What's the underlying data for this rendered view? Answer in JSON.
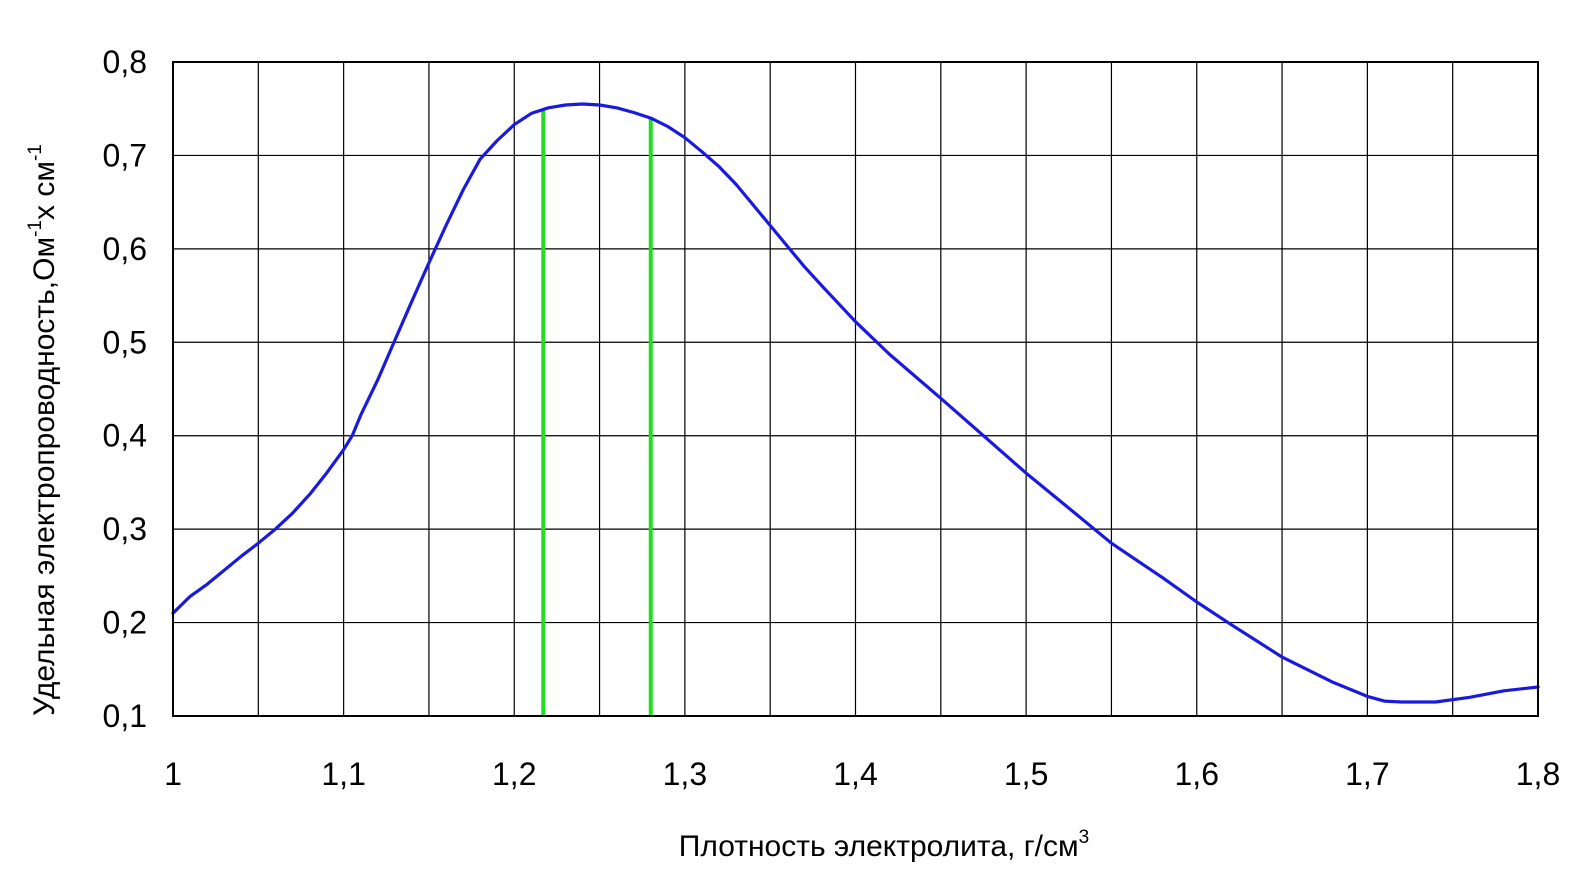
{
  "chart_data": {
    "type": "line",
    "title": "",
    "xlabel": {
      "text": "Плотность электролита, г/см",
      "sup": "3"
    },
    "ylabel": {
      "part1": "Удельная электропроводность,Ом",
      "sup1": "-1",
      "part2": "х см",
      "sup2": "-1"
    },
    "xlim": [
      1.0,
      1.8
    ],
    "ylim": [
      0.1,
      0.8
    ],
    "x_ticks": [
      1.0,
      1.05,
      1.1,
      1.15,
      1.2,
      1.25,
      1.3,
      1.35,
      1.4,
      1.45,
      1.5,
      1.55,
      1.6,
      1.65,
      1.7,
      1.75,
      1.8
    ],
    "x_tick_labels": [
      "1",
      "1,1",
      "1,2",
      "1,3",
      "1,4",
      "1,5",
      "1,6",
      "1,7",
      "1,8"
    ],
    "x_tick_label_values": [
      1.0,
      1.1,
      1.2,
      1.3,
      1.4,
      1.5,
      1.6,
      1.7,
      1.8
    ],
    "y_ticks": [
      0.1,
      0.2,
      0.3,
      0.4,
      0.5,
      0.6,
      0.7,
      0.8
    ],
    "y_tick_labels": [
      "0,1",
      "0,2",
      "0,3",
      "0,4",
      "0,5",
      "0,6",
      "0,7",
      "0,8"
    ],
    "grid": true,
    "series": [
      {
        "color": "#1a1adf",
        "x": [
          1.0,
          1.01,
          1.02,
          1.03,
          1.04,
          1.05,
          1.06,
          1.07,
          1.08,
          1.09,
          1.1,
          1.105,
          1.11,
          1.12,
          1.13,
          1.14,
          1.15,
          1.16,
          1.17,
          1.18,
          1.19,
          1.2,
          1.21,
          1.22,
          1.23,
          1.24,
          1.25,
          1.26,
          1.27,
          1.28,
          1.29,
          1.3,
          1.31,
          1.32,
          1.33,
          1.34,
          1.35,
          1.36,
          1.37,
          1.38,
          1.4,
          1.42,
          1.45,
          1.48,
          1.5,
          1.52,
          1.55,
          1.58,
          1.6,
          1.62,
          1.65,
          1.68,
          1.7,
          1.71,
          1.72,
          1.74,
          1.76,
          1.78,
          1.8
        ],
        "y": [
          0.21,
          0.228,
          0.241,
          0.256,
          0.271,
          0.285,
          0.3,
          0.317,
          0.337,
          0.36,
          0.385,
          0.4,
          0.422,
          0.46,
          0.502,
          0.544,
          0.585,
          0.625,
          0.663,
          0.696,
          0.716,
          0.733,
          0.745,
          0.751,
          0.754,
          0.755,
          0.754,
          0.751,
          0.746,
          0.74,
          0.731,
          0.719,
          0.704,
          0.688,
          0.669,
          0.647,
          0.625,
          0.603,
          0.581,
          0.561,
          0.522,
          0.487,
          0.44,
          0.392,
          0.36,
          0.33,
          0.285,
          0.248,
          0.222,
          0.198,
          0.163,
          0.136,
          0.121,
          0.116,
          0.115,
          0.115,
          0.12,
          0.127,
          0.131
        ]
      }
    ],
    "reference_lines": [
      {
        "type": "vertical",
        "x": 1.217,
        "color": "#22dd22"
      },
      {
        "type": "vertical",
        "x": 1.28,
        "color": "#22dd22"
      }
    ]
  }
}
